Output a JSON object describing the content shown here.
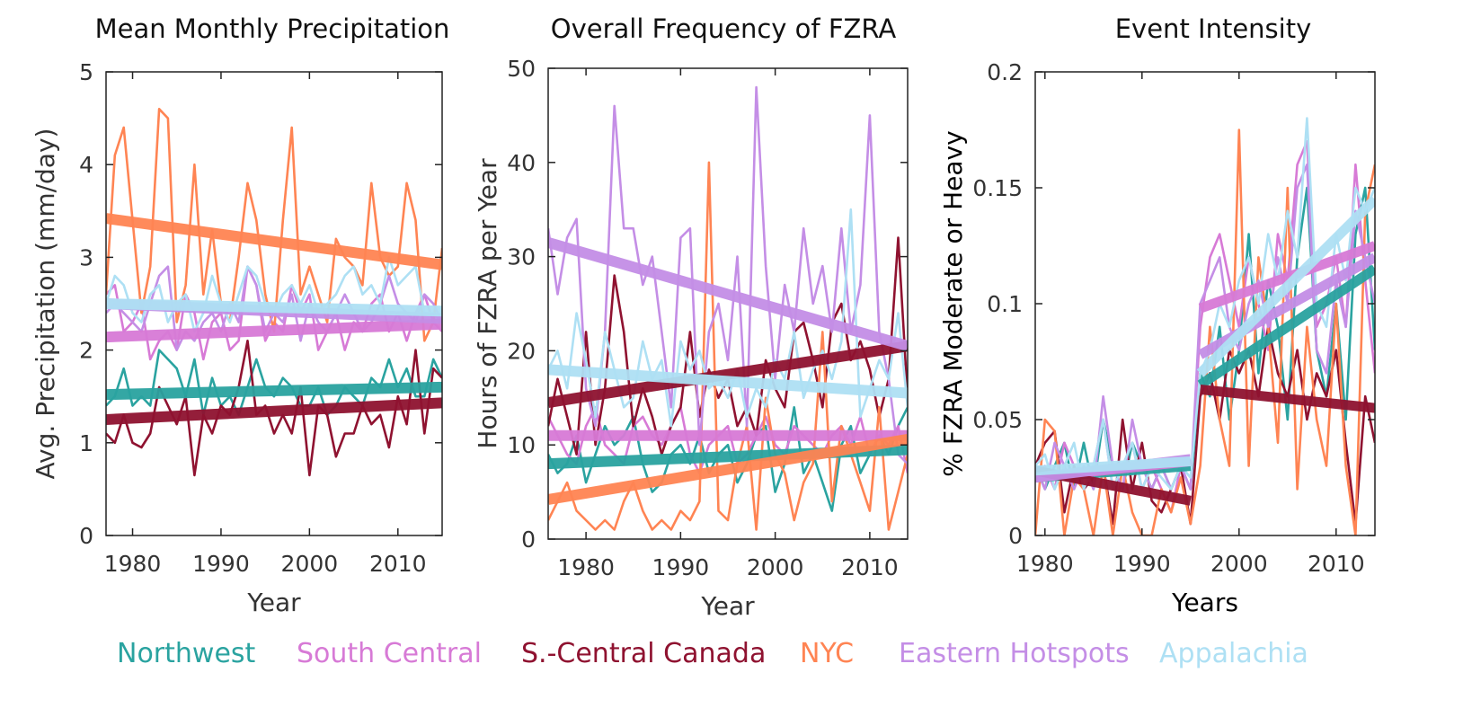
{
  "colors": {
    "Northwest": "#2aa3a0",
    "South Central": "#d77ad6",
    "S.-Central Canada": "#8f1230",
    "NYC": "#ff8453",
    "Eastern Hotspots": "#c48ee6",
    "Appalachia": "#aee0f4"
  },
  "legend": [
    "Northwest",
    "South Central",
    "S.-Central Canada",
    "NYC",
    "Eastern Hotspots",
    "Appalachia"
  ],
  "chart_data": [
    {
      "type": "line",
      "title": "Mean Monthly Precipitation",
      "xlabel": "Year",
      "ylabel": "Avg. Precipitation (mm/day)",
      "xlim": [
        1977,
        2015
      ],
      "ylim": [
        0,
        5
      ],
      "xticks": [
        1980,
        1990,
        2000,
        2010
      ],
      "yticks": [
        0,
        1,
        2,
        3,
        4,
        5
      ],
      "x": [
        1977,
        1978,
        1979,
        1980,
        1981,
        1982,
        1983,
        1984,
        1985,
        1986,
        1987,
        1988,
        1989,
        1990,
        1991,
        1992,
        1993,
        1994,
        1995,
        1996,
        1997,
        1998,
        1999,
        2000,
        2001,
        2002,
        2003,
        2004,
        2005,
        2006,
        2007,
        2008,
        2009,
        2010,
        2011,
        2012,
        2013,
        2014,
        2015
      ],
      "series": [
        {
          "name": "Northwest",
          "values": [
            1.4,
            1.5,
            1.8,
            1.4,
            1.5,
            1.4,
            2.0,
            1.9,
            1.8,
            1.5,
            1.9,
            1.3,
            1.7,
            1.4,
            1.5,
            1.3,
            1.6,
            1.9,
            1.6,
            1.5,
            1.7,
            1.6,
            1.4,
            1.4,
            1.6,
            1.3,
            1.4,
            1.6,
            1.5,
            1.4,
            1.7,
            1.6,
            1.9,
            1.6,
            1.8,
            1.5,
            1.5,
            1.9,
            1.7
          ],
          "trend": [
            1.52,
            1.6
          ]
        },
        {
          "name": "South Central",
          "values": [
            2.6,
            2.7,
            2.2,
            2.3,
            2.5,
            1.9,
            2.1,
            2.2,
            2.0,
            2.6,
            2.4,
            1.9,
            2.3,
            2.4,
            2.0,
            2.1,
            2.9,
            2.7,
            2.1,
            2.3,
            2.2,
            2.7,
            2.4,
            2.6,
            2.0,
            2.2,
            2.4,
            2.0,
            2.3,
            2.2,
            2.5,
            2.6,
            2.2,
            2.4,
            2.1,
            2.4,
            2.6,
            2.3,
            2.2
          ],
          "trend": [
            2.14,
            2.28
          ]
        },
        {
          "name": "S.-Central Canada",
          "values": [
            1.1,
            1.0,
            1.3,
            1.0,
            0.95,
            1.1,
            1.6,
            1.4,
            1.2,
            1.5,
            0.65,
            1.3,
            1.1,
            1.4,
            1.3,
            1.6,
            2.1,
            1.3,
            1.4,
            1.1,
            1.3,
            1.1,
            1.6,
            0.65,
            1.4,
            1.3,
            0.85,
            1.1,
            1.1,
            1.4,
            1.2,
            1.3,
            0.95,
            1.5,
            1.2,
            2.0,
            1.1,
            1.8,
            1.7
          ],
          "trend": [
            1.25,
            1.43
          ]
        },
        {
          "name": "NYC",
          "values": [
            2.6,
            4.1,
            4.4,
            3.4,
            2.4,
            2.9,
            4.6,
            4.5,
            2.3,
            2.7,
            4.0,
            2.6,
            3.3,
            2.5,
            2.3,
            3.0,
            3.8,
            3.4,
            2.6,
            2.2,
            3.4,
            4.4,
            2.6,
            2.9,
            2.6,
            2.3,
            3.2,
            3.0,
            2.9,
            2.7,
            3.8,
            3.0,
            2.8,
            2.9,
            3.8,
            3.4,
            2.1,
            2.3,
            3.1
          ],
          "trend": [
            3.42,
            2.92
          ]
        },
        {
          "name": "Eastern Hotspots",
          "values": [
            2.4,
            2.5,
            2.4,
            2.3,
            2.2,
            2.5,
            2.8,
            2.9,
            2.0,
            2.2,
            2.1,
            2.3,
            2.4,
            2.2,
            2.5,
            2.3,
            2.9,
            2.7,
            2.2,
            2.4,
            2.3,
            2.6,
            2.1,
            2.5,
            2.3,
            2.2,
            2.4,
            2.6,
            2.4,
            2.2,
            2.3,
            2.5,
            2.8,
            2.5,
            2.4,
            2.3,
            2.6,
            2.5,
            2.3
          ],
          "trend": [
            2.5,
            2.34
          ]
        },
        {
          "name": "Appalachia",
          "values": [
            2.5,
            2.8,
            2.7,
            2.4,
            2.3,
            2.6,
            2.7,
            2.3,
            2.5,
            2.6,
            2.2,
            2.4,
            2.8,
            2.5,
            2.3,
            2.6,
            2.9,
            2.8,
            2.5,
            2.4,
            2.6,
            2.7,
            2.5,
            2.7,
            2.4,
            2.5,
            2.6,
            2.8,
            2.9,
            2.6,
            2.7,
            2.5,
            3.0,
            2.7,
            2.8,
            2.9,
            2.4,
            2.4,
            2.3
          ],
          "trend": [
            2.5,
            2.42
          ]
        }
      ]
    },
    {
      "type": "line",
      "title": "Overall Frequency of FZRA",
      "xlabel": "Year",
      "ylabel": "Hours of FZRA per Year",
      "xlim": [
        1976,
        2014
      ],
      "ylim": [
        0,
        50
      ],
      "xticks": [
        1980,
        1990,
        2000,
        2010
      ],
      "yticks": [
        0,
        10,
        20,
        30,
        40,
        50
      ],
      "x": [
        1976,
        1977,
        1978,
        1979,
        1980,
        1981,
        1982,
        1983,
        1984,
        1985,
        1986,
        1987,
        1988,
        1989,
        1990,
        1991,
        1992,
        1993,
        1994,
        1995,
        1996,
        1997,
        1998,
        1999,
        2000,
        2001,
        2002,
        2003,
        2004,
        2005,
        2006,
        2007,
        2008,
        2009,
        2010,
        2011,
        2012,
        2013,
        2014
      ],
      "series": [
        {
          "name": "Northwest",
          "values": [
            9,
            7,
            8,
            11,
            6,
            9,
            12,
            10,
            11,
            13,
            8,
            5,
            6,
            9,
            10,
            8,
            11,
            7,
            9,
            10,
            6,
            8,
            11,
            12,
            5,
            8,
            14,
            7,
            9,
            6,
            3,
            10,
            12,
            7,
            9,
            11,
            9,
            12,
            14
          ],
          "trend": [
            8,
            9.5
          ]
        },
        {
          "name": "South Central",
          "values": [
            13,
            11,
            9,
            8,
            12,
            14,
            10,
            9,
            8,
            12,
            13,
            11,
            10,
            12,
            14,
            9,
            7,
            10,
            11,
            12,
            8,
            9,
            11,
            13,
            10,
            9,
            12,
            11,
            10,
            9,
            11,
            12,
            10,
            13,
            9,
            11,
            10,
            12,
            7
          ],
          "trend": [
            11,
            11
          ]
        },
        {
          "name": "S.-Central Canada",
          "values": [
            12,
            17,
            13,
            9,
            22,
            10,
            16,
            28,
            22,
            12,
            16,
            13,
            9,
            12,
            14,
            22,
            13,
            18,
            15,
            17,
            12,
            14,
            11,
            19,
            16,
            14,
            22,
            23,
            19,
            14,
            23,
            25,
            19,
            21,
            18,
            13,
            17,
            32,
            15
          ],
          "trend": [
            14.5,
            20.5
          ]
        },
        {
          "name": "NYC",
          "values": [
            2,
            4,
            6,
            3,
            2,
            1,
            2,
            1,
            4,
            6,
            3,
            1,
            2,
            1,
            3,
            2,
            4,
            40,
            3,
            2,
            8,
            12,
            1,
            15,
            9,
            7,
            2,
            6,
            8,
            22,
            4,
            12,
            9,
            6,
            3,
            14,
            1,
            5,
            9
          ],
          "trend": [
            4.2,
            10.6
          ]
        },
        {
          "name": "Eastern Hotspots",
          "values": [
            33,
            26,
            32,
            34,
            16,
            12,
            22,
            46,
            33,
            33,
            27,
            30,
            22,
            14,
            32,
            33,
            10,
            22,
            25,
            19,
            30,
            12,
            48,
            29,
            17,
            27,
            22,
            33,
            25,
            29,
            22,
            33,
            22,
            27,
            45,
            22,
            17,
            9,
            8
          ],
          "trend": [
            31.5,
            20.5
          ]
        },
        {
          "name": "Appalachia",
          "values": [
            18,
            20,
            16,
            24,
            19,
            13,
            22,
            18,
            14,
            15,
            21,
            17,
            19,
            12,
            21,
            18,
            20,
            16,
            17,
            15,
            18,
            13,
            16,
            14,
            19,
            17,
            22,
            15,
            18,
            20,
            17,
            21,
            35,
            13,
            16,
            19,
            17,
            24,
            14
          ],
          "trend": [
            18,
            15.5
          ]
        }
      ]
    },
    {
      "type": "line",
      "title": "Event Intensity",
      "xlabel": "Years",
      "ylabel": "% FZRA Moderate or Heavy",
      "xlim": [
        1979,
        2014
      ],
      "ylim": [
        0,
        0.2
      ],
      "xticks": [
        1980,
        1990,
        2000,
        2010
      ],
      "yticks": [
        0,
        0.05,
        0.1,
        0.15,
        0.2
      ],
      "x": [
        1979,
        1980,
        1981,
        1982,
        1983,
        1984,
        1985,
        1986,
        1987,
        1988,
        1989,
        1990,
        1991,
        1992,
        1993,
        1994,
        1995,
        1996,
        1997,
        1998,
        1999,
        2000,
        2001,
        2002,
        2003,
        2004,
        2005,
        2006,
        2007,
        2008,
        2009,
        2010,
        2011,
        2012,
        2013,
        2014
      ],
      "series": [
        {
          "name": "Northwest",
          "values": [
            0.03,
            0.02,
            0.03,
            0.04,
            0.02,
            0.04,
            0.02,
            0.05,
            0.03,
            0.02,
            0.04,
            0.03,
            0.02,
            0.03,
            0.02,
            0.03,
            0.02,
            0.07,
            0.06,
            0.09,
            0.05,
            0.08,
            0.13,
            0.07,
            0.11,
            0.09,
            0.05,
            0.12,
            0.15,
            0.08,
            0.06,
            0.1,
            0.05,
            0.13,
            0.15,
            0.08
          ],
          "trend_pre": [
            0.025,
            0.03
          ],
          "trend_post": [
            0.065,
            0.115
          ]
        },
        {
          "name": "South Central",
          "values": [
            0.025,
            0.03,
            0.02,
            0.04,
            0.03,
            0.02,
            0.03,
            0.05,
            0.02,
            0.03,
            0.04,
            0.02,
            0.03,
            0.02,
            0.01,
            0.03,
            0.02,
            0.09,
            0.12,
            0.13,
            0.11,
            0.09,
            0.12,
            0.1,
            0.08,
            0.13,
            0.11,
            0.16,
            0.17,
            0.09,
            0.1,
            0.12,
            0.09,
            0.16,
            0.11,
            0.07
          ],
          "trend_pre": [
            0.025,
            0.032
          ],
          "trend_post": [
            0.098,
            0.125
          ]
        },
        {
          "name": "S.-Central Canada",
          "values": [
            0.03,
            0.04,
            0.045,
            0.01,
            0.03,
            0.02,
            0.025,
            0.03,
            0.005,
            0.05,
            0.02,
            0.04,
            0.015,
            0.01,
            0.02,
            0.03,
            0.005,
            0.06,
            0.07,
            0.05,
            0.08,
            0.07,
            0.08,
            0.06,
            0.09,
            0.07,
            0.06,
            0.08,
            0.05,
            0.07,
            0.06,
            0.08,
            0.04,
            0.005,
            0.06,
            0.04
          ],
          "trend_pre": [
            0.028,
            0.015
          ],
          "trend_post": [
            0.063,
            0.055
          ]
        },
        {
          "name": "NYC",
          "values": [
            0.0,
            0.05,
            0.045,
            0.0,
            0.025,
            0.02,
            0.0,
            0.03,
            0.0,
            0.03,
            0.01,
            0.0,
            0.0,
            0.02,
            0.01,
            0.025,
            0.005,
            0.03,
            0.09,
            0.05,
            0.03,
            0.175,
            0.03,
            0.12,
            0.09,
            0.04,
            0.15,
            0.02,
            0.09,
            0.05,
            0.03,
            0.1,
            0.03,
            0.0,
            0.14,
            0.16
          ],
          "trend_pre": null,
          "trend_post": null
        },
        {
          "name": "Eastern Hotspots",
          "values": [
            0.03,
            0.02,
            0.04,
            0.03,
            0.02,
            0.03,
            0.02,
            0.06,
            0.03,
            0.02,
            0.05,
            0.03,
            0.02,
            0.03,
            0.02,
            0.03,
            0.02,
            0.1,
            0.11,
            0.12,
            0.09,
            0.08,
            0.1,
            0.11,
            0.09,
            0.12,
            0.1,
            0.15,
            0.16,
            0.08,
            0.07,
            0.11,
            0.09,
            0.14,
            0.12,
            0.1
          ],
          "trend_pre": [
            0.025,
            0.033
          ],
          "trend_post": [
            0.078,
            0.12
          ]
        },
        {
          "name": "Appalachia",
          "values": [
            0.03,
            0.035,
            0.02,
            0.03,
            0.04,
            0.02,
            0.03,
            0.05,
            0.02,
            0.03,
            0.04,
            0.02,
            0.03,
            0.025,
            0.02,
            0.03,
            0.025,
            0.07,
            0.08,
            0.1,
            0.09,
            0.11,
            0.12,
            0.1,
            0.13,
            0.11,
            0.14,
            0.12,
            0.18,
            0.1,
            0.09,
            0.13,
            0.11,
            0.15,
            0.14,
            0.15
          ],
          "trend_pre": [
            0.028,
            0.032
          ],
          "trend_post": [
            0.07,
            0.145
          ]
        }
      ]
    }
  ]
}
